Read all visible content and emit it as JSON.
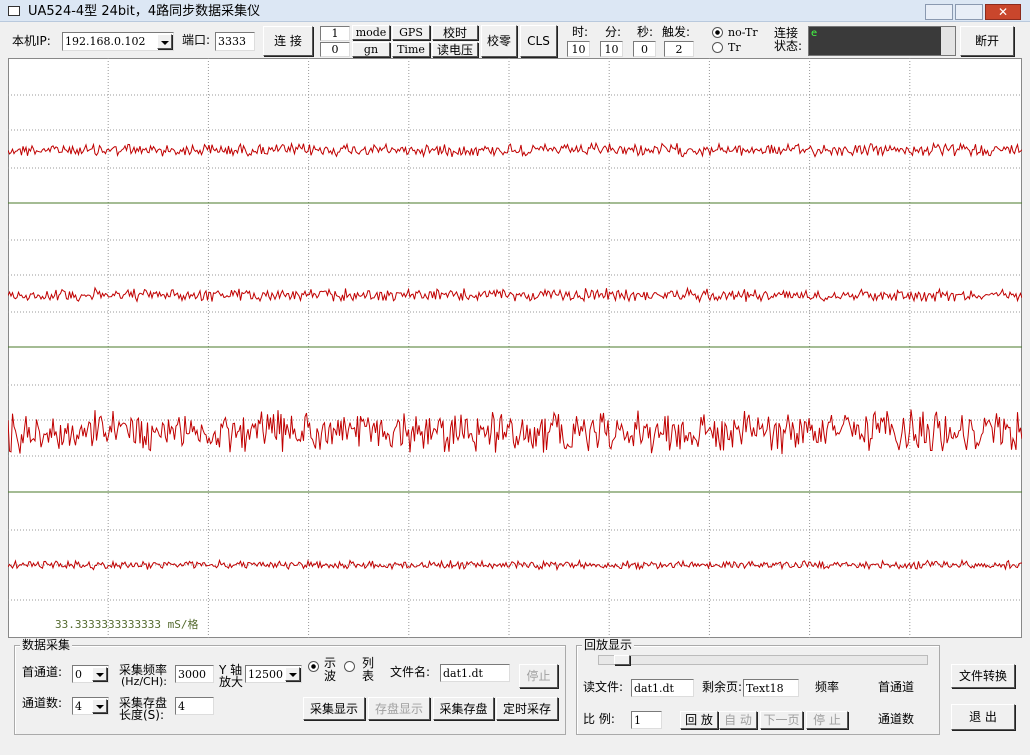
{
  "window": {
    "title": "UA524-4型 24bit，4路同步数据采集仪"
  },
  "toolbar": {
    "ip_label": "本机IP:",
    "ip_value": "192.168.0.102",
    "port_label": "端口:",
    "port_value": "3333",
    "connect": "连 接",
    "field_top": "1",
    "field_bottom": "0",
    "mode": "mode",
    "gn": "gn",
    "gps": "GPS",
    "time": "Time",
    "calib_time": "校时",
    "read_voltage": "读电压",
    "zero": "校零",
    "cls": "CLS",
    "hour_label": "时:",
    "hour": "10",
    "minute_label": "分:",
    "minute": "10",
    "second_label": "秒:",
    "second": "0",
    "trigger_label": "触发:",
    "trigger": "2",
    "no_tr": "no-Tr",
    "tr": "Tr",
    "status_label_1": "连接",
    "status_label_2": "状态:",
    "status": "e",
    "disconnect": "断开"
  },
  "plot": {
    "scale": "33.3333333333333 mS/格"
  },
  "acquisition": {
    "legend": "数据采集",
    "first_channel_label": "首通道:",
    "first_channel": "0",
    "channel_count_label": "通道数:",
    "channel_count": "4",
    "rate_label_1": "采集频率",
    "rate_label_2": "(Hz/CH):",
    "rate": "3000",
    "gain_label_1": "Y 轴",
    "gain_label_2": "放大",
    "gain": "12500",
    "storage_label_1": "采集存盘",
    "storage_label_2": "长度(S):",
    "storage": "4",
    "wave_1": "示",
    "wave_2": "波",
    "list_1": "列",
    "list_2": "表",
    "filename_label": "文件名:",
    "filename": "dat1.dt",
    "stop": "停止",
    "show": "采集显示",
    "save_show": "存盘显示",
    "save": "采集存盘",
    "timed_save": "定时采存"
  },
  "playback": {
    "legend": "回放显示",
    "read_file_label": "读文件:",
    "read_file": "dat1.dt",
    "pages_label": "剩余页:",
    "pages": "Text18",
    "frequency": "频率",
    "first_channel": "首通道",
    "ratio_label": "比 例:",
    "ratio": "1",
    "play": "回 放",
    "auto": "自 动",
    "next": "下一页",
    "stop": "停 止",
    "channel_count": "通道数"
  },
  "buttons": {
    "convert": "文件转换",
    "exit": "退 出"
  }
}
